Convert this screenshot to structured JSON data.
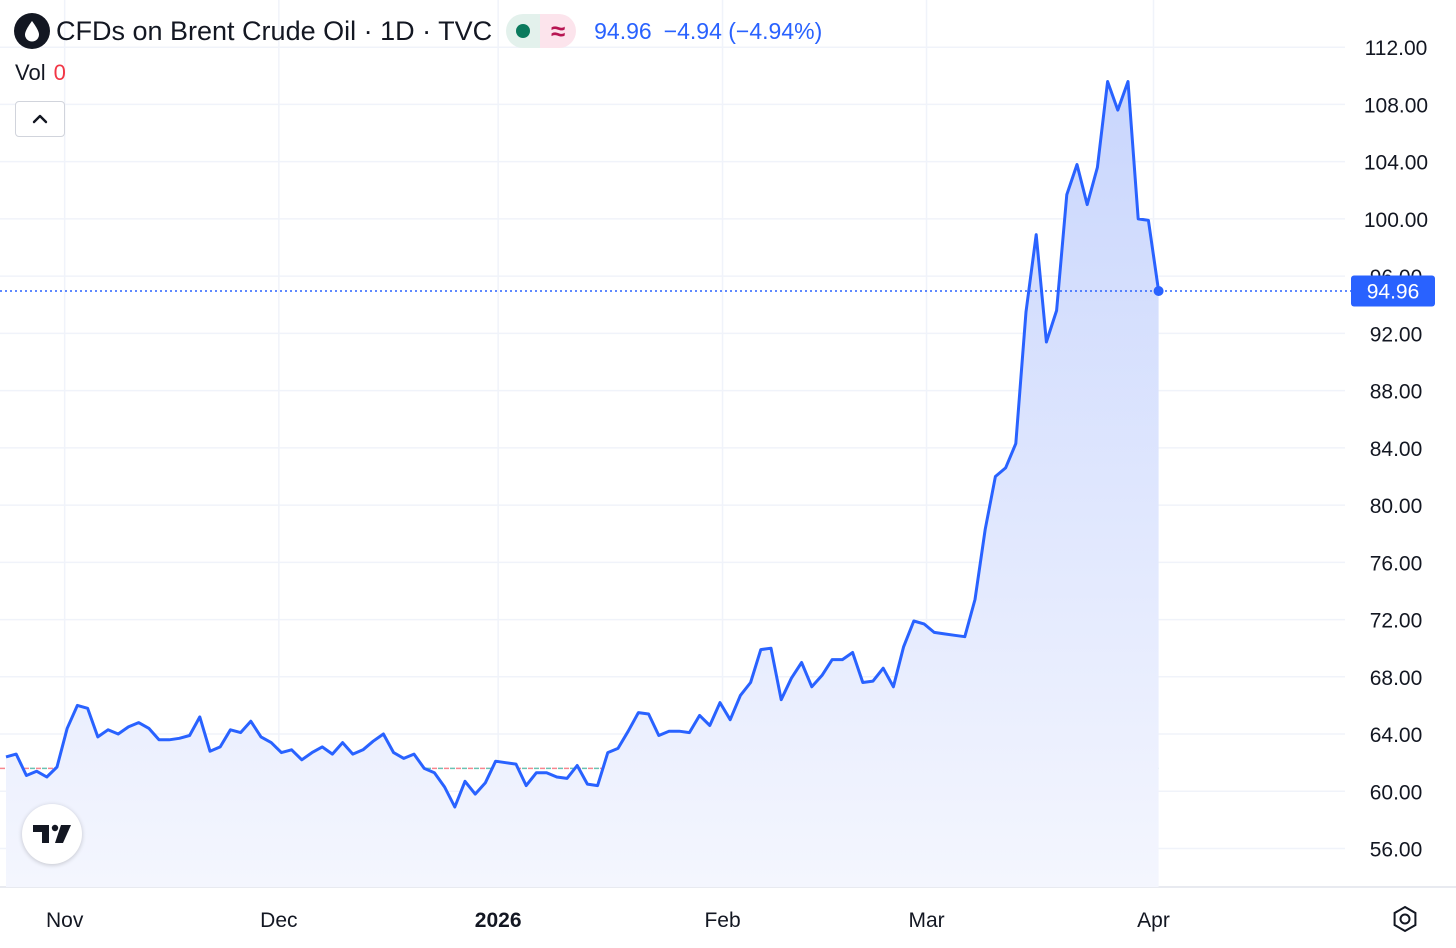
{
  "header": {
    "title": "CFDs on Brent Crude Oil · 1D · TVC",
    "wave_symbol": "≈",
    "price": "94.96",
    "change": "−4.94 (−4.94%)"
  },
  "volume": {
    "label": "Vol",
    "value": "0"
  },
  "icons": {
    "symbol_logo": "oil-drop-icon",
    "market_status": "market-open-dot-icon",
    "collapse": "chevron-up-icon",
    "brand": "tradingview-logo-icon",
    "settings": "gear-icon"
  },
  "colors": {
    "line": "#2962ff",
    "area_top": "#c9d6fd",
    "area_bottom": "#f4f6fe",
    "price_label_bg": "#2962ff",
    "baseline_red": "#f23645",
    "baseline_green": "#089981",
    "axis_text": "#131722",
    "grid": "#f0f3fa"
  },
  "chart_data": {
    "type": "area",
    "title": "CFDs on Brent Crude Oil · 1D · TVC",
    "xlabel": "",
    "ylabel": "",
    "x_ticks": [
      "Nov",
      "Dec",
      "2026",
      "Feb",
      "Mar",
      "Apr"
    ],
    "y_ticks": [
      112,
      108,
      104,
      100,
      96,
      92,
      88,
      84,
      80,
      76,
      72,
      68,
      64,
      60,
      56
    ],
    "y_tick_labels": [
      "112.00",
      "108.00",
      "104.00",
      "100.00",
      "96.00",
      "92.00",
      "88.00",
      "84.00",
      "80.00",
      "76.00",
      "72.00",
      "68.00",
      "64.00",
      "60.00",
      "56.00"
    ],
    "ylim": [
      53.8,
      113.9
    ],
    "last_price": 94.96,
    "last_price_label": "94.96",
    "baseline_value": 61.6,
    "grid": true,
    "series": [
      {
        "values": [
          62.4,
          62.6,
          61.1,
          61.4,
          61.0,
          61.7,
          64.4,
          66.0,
          65.8,
          63.8,
          64.3,
          64.0,
          64.5,
          64.8,
          64.4,
          63.6,
          63.6,
          63.7,
          63.9,
          65.2,
          62.8,
          63.1,
          64.3,
          64.1,
          64.9,
          63.8,
          63.4,
          62.7,
          62.9,
          62.2,
          62.7,
          63.1,
          62.6,
          63.4,
          62.6,
          62.9,
          63.5,
          64.0,
          62.7,
          62.3,
          62.6,
          61.6,
          61.3,
          60.3,
          58.9,
          60.7,
          59.8,
          60.6,
          62.1,
          62.0,
          61.9,
          60.4,
          61.3,
          61.3,
          61.0,
          60.9,
          61.8,
          60.5,
          60.4,
          62.7,
          63.0,
          64.2,
          65.5,
          65.4,
          63.9,
          64.2,
          64.2,
          64.1,
          65.3,
          64.6,
          66.2,
          65.0,
          66.7,
          67.6,
          69.9,
          70.0,
          66.4,
          67.9,
          69.0,
          67.3,
          68.1,
          69.2,
          69.2,
          69.7,
          67.6,
          67.7,
          68.6,
          67.3,
          70.1,
          71.9,
          71.7,
          71.1,
          71.0,
          70.9,
          70.8,
          73.4,
          78.3,
          82.0,
          82.6,
          84.3,
          93.5,
          98.9,
          91.4,
          93.6,
          101.7,
          103.8,
          101.0,
          103.6,
          109.6,
          107.6,
          109.6,
          100.0,
          99.9,
          94.96
        ]
      }
    ]
  }
}
